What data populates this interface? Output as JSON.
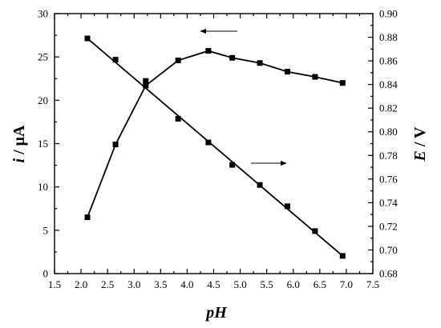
{
  "chart_data": {
    "type": "line",
    "xlabel": {
      "italic": "pH",
      "unit": ""
    },
    "ylabel_left": {
      "italic": "i",
      "unit": " / μA"
    },
    "ylabel_right": {
      "italic": "E",
      "unit": " / V"
    },
    "xlim": [
      1.5,
      7.5
    ],
    "ylim_left": [
      0,
      30
    ],
    "ylim_right": [
      0.68,
      0.9
    ],
    "x_ticks": [
      "1.5",
      "2.0",
      "2.5",
      "3.0",
      "3.5",
      "4.0",
      "4.5",
      "5.0",
      "5.5",
      "6.0",
      "6.5",
      "7.0",
      "7.5"
    ],
    "y_left_ticks": [
      "0",
      "5",
      "10",
      "15",
      "20",
      "25",
      "30"
    ],
    "y_right_ticks": [
      "0.68",
      "0.70",
      "0.72",
      "0.74",
      "0.76",
      "0.78",
      "0.80",
      "0.82",
      "0.84",
      "0.86",
      "0.88",
      "0.90"
    ],
    "grid": false,
    "series": [
      {
        "axis": "left",
        "marker": "square",
        "x": [
          2.12,
          2.65,
          3.22,
          3.83,
          4.4,
          4.85,
          5.37,
          5.89,
          6.41,
          6.93
        ],
        "y": [
          6.5,
          14.9,
          21.7,
          24.6,
          25.7,
          24.9,
          24.3,
          23.3,
          22.7,
          22.0
        ]
      },
      {
        "axis": "right",
        "marker": "square",
        "x": [
          2.12,
          2.65,
          3.22,
          3.83,
          4.4,
          4.85,
          5.37,
          5.89,
          6.41,
          6.93
        ],
        "y": [
          0.879,
          0.861,
          0.843,
          0.811,
          0.791,
          0.772,
          0.755,
          0.737,
          0.716,
          0.695
        ],
        "fit_line": {
          "x": [
            2.12,
            6.93
          ],
          "y": [
            0.879,
            0.695
          ]
        }
      }
    ]
  }
}
